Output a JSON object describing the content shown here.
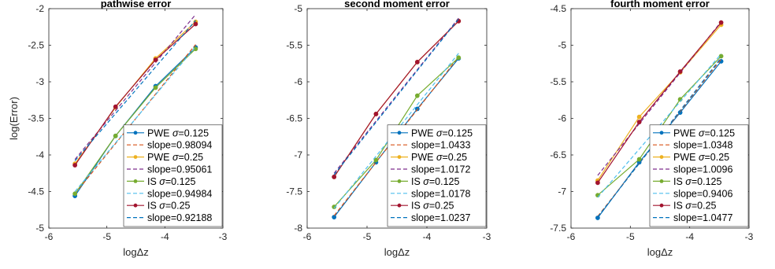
{
  "colors": {
    "blue": "#0072BD",
    "orange": "#D95319",
    "yellow": "#EDB120",
    "purple": "#7E2F8E",
    "green": "#77AC30",
    "cyan": "#4DBEEE",
    "darkred": "#A2142F"
  },
  "chart_data": [
    {
      "type": "line",
      "title": "pathwise error",
      "xlabel": "logΔz",
      "ylabel": "log(Error)",
      "xlim": [
        -6,
        -3
      ],
      "ylim": [
        -5,
        -2
      ],
      "xticks": [
        -6,
        -5,
        -4,
        -3
      ],
      "yticks": [
        -5,
        -4.5,
        -4,
        -3.5,
        -3,
        -2.5,
        -2
      ],
      "grid": false,
      "legend_position": "bottom-right",
      "series": [
        {
          "name": "PWE σ=0.125",
          "x": [
            -5.55,
            -4.85,
            -4.16,
            -3.47
          ],
          "y": [
            -4.56,
            -3.74,
            -3.06,
            -2.53
          ],
          "color": "blue",
          "style": "solid",
          "markers": true
        },
        {
          "name": "slope=0.98094",
          "x": [
            -5.55,
            -3.47
          ],
          "y": [
            -4.53,
            -2.49
          ],
          "color": "orange",
          "style": "dashed",
          "markers": false
        },
        {
          "name": "PWE σ=0.25",
          "x": [
            -5.55,
            -4.85,
            -4.16,
            -3.47
          ],
          "y": [
            -4.12,
            -3.35,
            -2.68,
            -2.18
          ],
          "color": "yellow",
          "style": "solid",
          "markers": true
        },
        {
          "name": "slope=0.95061",
          "x": [
            -5.55,
            -3.47
          ],
          "y": [
            -4.06,
            -2.08
          ],
          "color": "purple",
          "style": "dashed",
          "markers": false
        },
        {
          "name": "IS σ=0.125",
          "x": [
            -5.55,
            -4.85,
            -4.16,
            -3.47
          ],
          "y": [
            -4.53,
            -3.74,
            -3.08,
            -2.55
          ],
          "color": "green",
          "style": "solid",
          "markers": true
        },
        {
          "name": "slope=0.94984",
          "x": [
            -5.55,
            -3.47
          ],
          "y": [
            -4.5,
            -2.52
          ],
          "color": "cyan",
          "style": "dashed",
          "markers": false
        },
        {
          "name": "IS σ=0.25",
          "x": [
            -5.55,
            -4.85,
            -4.16,
            -3.47
          ],
          "y": [
            -4.14,
            -3.34,
            -2.7,
            -2.21
          ],
          "color": "darkred",
          "style": "solid",
          "markers": true
        },
        {
          "name": "slope=0.92188",
          "x": [
            -5.55,
            -3.47
          ],
          "y": [
            -4.08,
            -2.16
          ],
          "color": "blue",
          "style": "dashed",
          "markers": false
        }
      ]
    },
    {
      "type": "line",
      "title": "second moment error",
      "xlabel": "logΔz",
      "ylabel": "",
      "xlim": [
        -6,
        -3
      ],
      "ylim": [
        -8,
        -5
      ],
      "xticks": [
        -6,
        -5,
        -4,
        -3
      ],
      "yticks": [
        -8,
        -7.5,
        -7,
        -6.5,
        -6,
        -5.5,
        -5
      ],
      "grid": false,
      "legend_position": "bottom-right",
      "series": [
        {
          "name": "PWE σ=0.125",
          "x": [
            -5.55,
            -4.85,
            -4.16,
            -3.47
          ],
          "y": [
            -7.85,
            -7.1,
            -6.37,
            -5.68
          ],
          "color": "blue",
          "style": "solid",
          "markers": true
        },
        {
          "name": "slope=1.0433",
          "x": [
            -5.55,
            -3.47
          ],
          "y": [
            -7.83,
            -5.66
          ],
          "color": "orange",
          "style": "dashed",
          "markers": false
        },
        {
          "name": "PWE σ=0.25",
          "x": [
            -5.55,
            -4.85,
            -4.16,
            -3.47
          ],
          "y": [
            -7.3,
            -6.44,
            -5.73,
            -5.17
          ],
          "color": "yellow",
          "style": "solid",
          "markers": true
        },
        {
          "name": "slope=1.0172",
          "x": [
            -5.55,
            -3.47
          ],
          "y": [
            -7.25,
            -5.13
          ],
          "color": "purple",
          "style": "dashed",
          "markers": false
        },
        {
          "name": "IS σ=0.125",
          "x": [
            -5.55,
            -4.85,
            -4.16,
            -3.47
          ],
          "y": [
            -7.71,
            -7.07,
            -6.19,
            -5.67
          ],
          "color": "green",
          "style": "solid",
          "markers": true
        },
        {
          "name": "slope=1.0178",
          "x": [
            -5.55,
            -3.47
          ],
          "y": [
            -7.73,
            -5.61
          ],
          "color": "cyan",
          "style": "dashed",
          "markers": false
        },
        {
          "name": "IS σ=0.25",
          "x": [
            -5.55,
            -4.85,
            -4.16,
            -3.47
          ],
          "y": [
            -7.3,
            -6.44,
            -5.73,
            -5.17
          ],
          "color": "darkred",
          "style": "solid",
          "markers": true
        },
        {
          "name": "slope=1.0237",
          "x": [
            -5.55,
            -3.47
          ],
          "y": [
            -7.27,
            -5.14
          ],
          "color": "blue",
          "style": "dashed",
          "markers": false
        }
      ]
    },
    {
      "type": "line",
      "title": "fourth moment error",
      "xlabel": "logΔz",
      "ylabel": "",
      "xlim": [
        -6,
        -3
      ],
      "ylim": [
        -7.5,
        -4.5
      ],
      "xticks": [
        -6,
        -5,
        -4,
        -3
      ],
      "yticks": [
        -7.5,
        -7,
        -6.5,
        -6,
        -5.5,
        -5,
        -4.5
      ],
      "grid": false,
      "legend_position": "bottom-right",
      "series": [
        {
          "name": "PWE σ=0.125",
          "x": [
            -5.55,
            -4.85,
            -4.16,
            -3.47
          ],
          "y": [
            -7.36,
            -6.6,
            -5.92,
            -5.22
          ],
          "color": "blue",
          "style": "solid",
          "markers": true
        },
        {
          "name": "slope=1.0348",
          "x": [
            -5.55,
            -3.47
          ],
          "y": [
            -7.34,
            -5.19
          ],
          "color": "orange",
          "style": "dashed",
          "markers": false
        },
        {
          "name": "PWE σ=0.25",
          "x": [
            -5.55,
            -4.85,
            -4.16,
            -3.47
          ],
          "y": [
            -6.85,
            -5.98,
            -5.37,
            -4.72
          ],
          "color": "yellow",
          "style": "solid",
          "markers": true
        },
        {
          "name": "slope=1.0096",
          "x": [
            -5.55,
            -3.47
          ],
          "y": [
            -6.78,
            -4.68
          ],
          "color": "purple",
          "style": "dashed",
          "markers": false
        },
        {
          "name": "IS σ=0.125",
          "x": [
            -5.55,
            -4.85,
            -4.16,
            -3.47
          ],
          "y": [
            -7.05,
            -6.56,
            -5.74,
            -5.15
          ],
          "color": "green",
          "style": "solid",
          "markers": true
        },
        {
          "name": "slope=0.9406",
          "x": [
            -5.55,
            -3.47
          ],
          "y": [
            -7.08,
            -5.12
          ],
          "color": "cyan",
          "style": "dashed",
          "markers": false
        },
        {
          "name": "IS σ=0.25",
          "x": [
            -5.55,
            -4.85,
            -4.16,
            -3.47
          ],
          "y": [
            -6.88,
            -6.05,
            -5.36,
            -4.69
          ],
          "color": "darkred",
          "style": "solid",
          "markers": true
        },
        {
          "name": "slope=1.0477",
          "x": [
            -5.55,
            -3.47
          ],
          "y": [
            -7.35,
            -5.17
          ],
          "color": "blue",
          "style": "dashed",
          "markers": false
        }
      ]
    }
  ]
}
